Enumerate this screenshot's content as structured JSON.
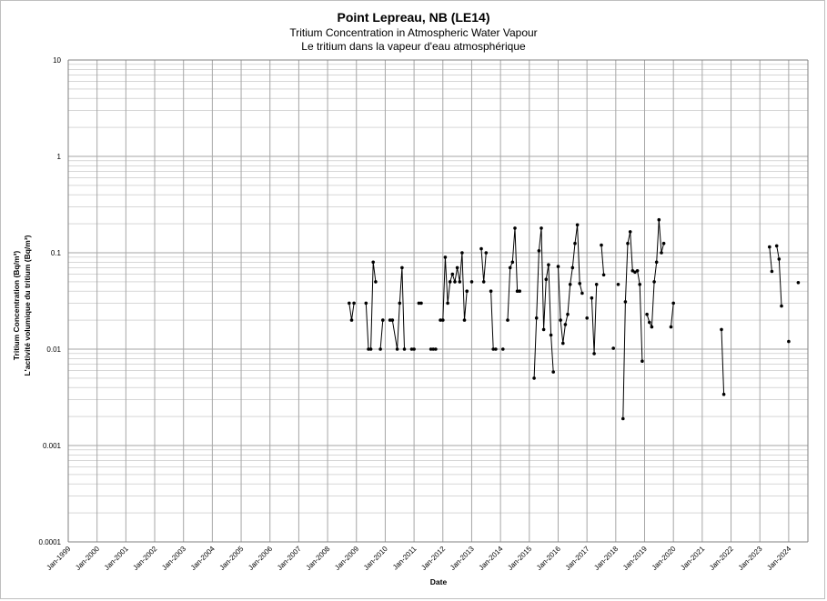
{
  "chart_data": {
    "type": "line",
    "title": "Point Lepreau, NB (LE14)",
    "subtitle_en": "Tritium Concentration in Atmospheric Water Vapour",
    "subtitle_fr": "Le tritium dans la vapeur d'eau atmosphérique",
    "xlabel": "Date",
    "ylabel_en": "Tritium Concentration (Bq/m³)",
    "ylabel_fr": "L'activité volumique du tritium (Bq/m³)",
    "yscale": "log",
    "ylim": [
      0.0001,
      10
    ],
    "xlim": [
      "1999-01",
      "2024-09"
    ],
    "y_tick_labels": [
      "10",
      "1",
      "0.1",
      "0.01",
      "0.001",
      "0.0001"
    ],
    "x_tick_labels": [
      "Jan-1999",
      "Jan-2000",
      "Jan-2001",
      "Jan-2002",
      "Jan-2003",
      "Jan-2004",
      "Jan-2005",
      "Jan-2006",
      "Jan-2007",
      "Jan-2008",
      "Jan-2009",
      "Jan-2010",
      "Jan-2011",
      "Jan-2012",
      "Jan-2013",
      "Jan-2014",
      "Jan-2015",
      "Jan-2016",
      "Jan-2017",
      "Jan-2018",
      "Jan-2019",
      "Jan-2020",
      "Jan-2021",
      "Jan-2022",
      "Jan-2023",
      "Jan-2024"
    ],
    "grid": true,
    "legend": "none",
    "colors": {
      "series": "#000000",
      "grid": "#bfbfbf",
      "axis": "#808080"
    },
    "series": [
      {
        "segments": [
          [
            [
              "2008-10",
              0.03
            ],
            [
              "2008-11",
              0.02
            ],
            [
              "2008-12",
              0.03
            ]
          ],
          [
            [
              "2009-05",
              0.03
            ],
            [
              "2009-06",
              0.01
            ],
            [
              "2009-07",
              0.01
            ],
            [
              "2009-08",
              0.08
            ],
            [
              "2009-09",
              0.05
            ]
          ],
          [
            [
              "2009-11",
              0.01
            ],
            [
              "2009-12",
              0.02
            ]
          ],
          [
            [
              "2010-03",
              0.02
            ],
            [
              "2010-04",
              0.02
            ],
            [
              "2010-06",
              0.01
            ],
            [
              "2010-07",
              0.03
            ],
            [
              "2010-08",
              0.07
            ],
            [
              "2010-09",
              0.01
            ]
          ],
          [
            [
              "2010-12",
              0.01
            ],
            [
              "2011-01",
              0.01
            ]
          ],
          [
            [
              "2011-03",
              0.03
            ],
            [
              "2011-04",
              0.03
            ]
          ],
          [
            [
              "2011-08",
              0.01
            ],
            [
              "2011-09",
              0.01
            ],
            [
              "2011-10",
              0.01
            ]
          ],
          [
            [
              "2011-12",
              0.02
            ],
            [
              "2012-01",
              0.02
            ],
            [
              "2012-02",
              0.09
            ],
            [
              "2012-03",
              0.03
            ],
            [
              "2012-04",
              0.05
            ],
            [
              "2012-05",
              0.06
            ],
            [
              "2012-06",
              0.05
            ],
            [
              "2012-07",
              0.07
            ],
            [
              "2012-08",
              0.05
            ],
            [
              "2012-09",
              0.1
            ],
            [
              "2012-10",
              0.02
            ],
            [
              "2012-11",
              0.04
            ]
          ],
          [
            [
              "2013-01",
              0.05
            ]
          ],
          [
            [
              "2013-05",
              0.11
            ],
            [
              "2013-06",
              0.05
            ],
            [
              "2013-07",
              0.1
            ]
          ],
          [
            [
              "2013-09",
              0.04
            ],
            [
              "2013-10",
              0.01
            ],
            [
              "2013-11",
              0.01
            ]
          ],
          [
            [
              "2014-02",
              0.01
            ]
          ],
          [
            [
              "2014-04",
              0.02
            ],
            [
              "2014-05",
              0.07
            ],
            [
              "2014-06",
              0.08
            ],
            [
              "2014-07",
              0.18
            ],
            [
              "2014-08",
              0.04
            ],
            [
              "2014-09",
              0.04
            ]
          ],
          [
            [
              "2015-03",
              0.005
            ],
            [
              "2015-04",
              0.021
            ],
            [
              "2015-05",
              0.105
            ],
            [
              "2015-06",
              0.18
            ],
            [
              "2015-07",
              0.016
            ],
            [
              "2015-08",
              0.053
            ],
            [
              "2015-09",
              0.075
            ],
            [
              "2015-10",
              0.014
            ],
            [
              "2015-11",
              0.0058
            ]
          ],
          [
            [
              "2016-01",
              0.072
            ],
            [
              "2016-02",
              0.02
            ],
            [
              "2016-03",
              0.0115
            ],
            [
              "2016-04",
              0.018
            ],
            [
              "2016-05",
              0.023
            ],
            [
              "2016-06",
              0.047
            ],
            [
              "2016-07",
              0.07
            ],
            [
              "2016-08",
              0.125
            ],
            [
              "2016-09",
              0.195
            ],
            [
              "2016-10",
              0.048
            ],
            [
              "2016-11",
              0.038
            ]
          ],
          [
            [
              "2017-01",
              0.021
            ]
          ],
          [
            [
              "2017-03",
              0.034
            ],
            [
              "2017-04",
              0.009
            ],
            [
              "2017-05",
              0.047
            ]
          ],
          [
            [
              "2017-07",
              0.12
            ],
            [
              "2017-08",
              0.059
            ]
          ],
          [
            [
              "2017-12",
              0.0102
            ]
          ],
          [
            [
              "2018-02",
              0.047
            ]
          ],
          [
            [
              "2018-04",
              0.0019
            ],
            [
              "2018-05",
              0.031
            ],
            [
              "2018-06",
              0.125
            ],
            [
              "2018-07",
              0.165
            ],
            [
              "2018-08",
              0.065
            ],
            [
              "2018-09",
              0.063
            ],
            [
              "2018-10",
              0.065
            ],
            [
              "2018-11",
              0.047
            ],
            [
              "2018-12",
              0.0075
            ]
          ],
          [
            [
              "2019-02",
              0.023
            ],
            [
              "2019-03",
              0.019
            ],
            [
              "2019-04",
              0.017
            ],
            [
              "2019-05",
              0.05
            ],
            [
              "2019-06",
              0.08
            ],
            [
              "2019-07",
              0.22
            ],
            [
              "2019-08",
              0.1
            ],
            [
              "2019-09",
              0.125
            ]
          ],
          [
            [
              "2019-12",
              0.017
            ],
            [
              "2020-01",
              0.03
            ]
          ],
          [
            [
              "2021-09",
              0.016
            ],
            [
              "2021-10",
              0.0034
            ]
          ],
          [
            [
              "2023-05",
              0.115
            ],
            [
              "2023-06",
              0.064
            ]
          ],
          [
            [
              "2023-08",
              0.118
            ],
            [
              "2023-09",
              0.086
            ],
            [
              "2023-10",
              0.028
            ]
          ],
          [
            [
              "2024-01",
              0.012
            ]
          ],
          [
            [
              "2024-05",
              0.049
            ]
          ]
        ]
      }
    ]
  }
}
